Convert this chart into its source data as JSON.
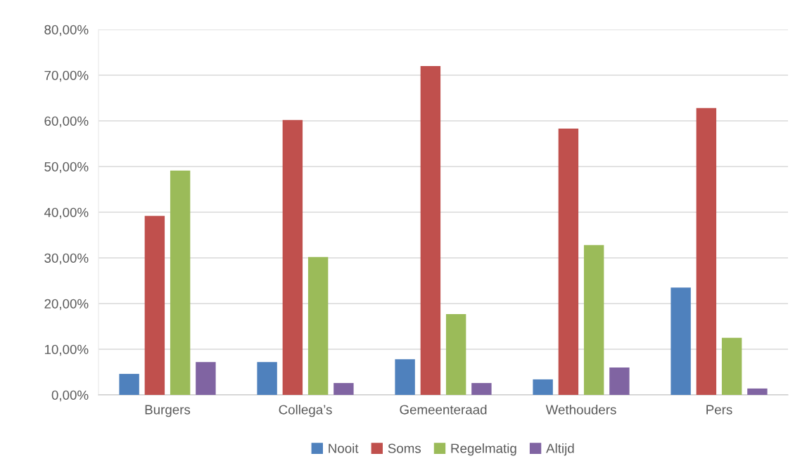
{
  "chart_data": {
    "type": "bar",
    "categories": [
      "Burgers",
      "Collega’s",
      "Gemeenteraad",
      "Wethouders",
      "Pers"
    ],
    "series": [
      {
        "name": "Nooit",
        "color": "#4f81bd",
        "values": [
          4.6,
          7.2,
          7.8,
          3.4,
          23.5
        ]
      },
      {
        "name": "Soms",
        "color": "#c0504d",
        "values": [
          39.2,
          60.2,
          72.0,
          58.3,
          62.8
        ]
      },
      {
        "name": "Regelmatig",
        "color": "#9bbb59",
        "values": [
          49.1,
          30.2,
          17.7,
          32.8,
          12.5
        ]
      },
      {
        "name": "Altijd",
        "color": "#8064a2",
        "values": [
          7.2,
          2.6,
          2.6,
          6.0,
          1.4
        ]
      }
    ],
    "ylim": [
      0,
      80
    ],
    "yticks": [
      {
        "value": 0,
        "label": "0,00%"
      },
      {
        "value": 10,
        "label": "10,00%"
      },
      {
        "value": 20,
        "label": "20,00%"
      },
      {
        "value": 30,
        "label": "30,00%"
      },
      {
        "value": 40,
        "label": "40,00%"
      },
      {
        "value": 50,
        "label": "50,00%"
      },
      {
        "value": 60,
        "label": "60,00%"
      },
      {
        "value": 70,
        "label": "70,00%"
      },
      {
        "value": 80,
        "label": "80,00%"
      }
    ],
    "grid": "y",
    "legend": "bottom"
  }
}
